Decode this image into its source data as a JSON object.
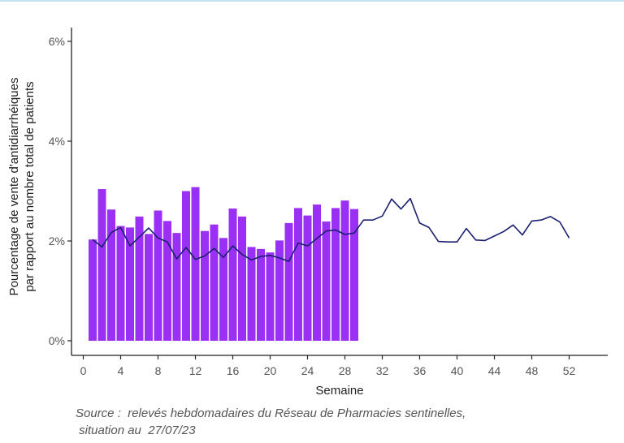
{
  "chart_data": {
    "type": "bar",
    "ylabel_lines": [
      "Pourcentage de vente d'antidiarrhéiques",
      "par rapport au nombre total de patients"
    ],
    "xlabel": "Semaine",
    "xlim": [
      0,
      54
    ],
    "ylim": [
      0,
      6
    ],
    "x_ticks": [
      0,
      4,
      8,
      12,
      16,
      20,
      24,
      28,
      32,
      36,
      40,
      44,
      48,
      52
    ],
    "y_ticks": [
      0,
      2,
      4,
      6
    ],
    "y_tick_labels": [
      "0%",
      "2%",
      "4%",
      "6%"
    ],
    "grid": false,
    "colors": {
      "bars": "#9b30f5",
      "line": "#1a1f6e",
      "axis": "#222222"
    },
    "series": [
      {
        "type": "bar",
        "x": [
          1,
          2,
          3,
          4,
          5,
          6,
          7,
          8,
          9,
          10,
          11,
          12,
          13,
          14,
          15,
          16,
          17,
          18,
          19,
          20,
          21,
          22,
          23,
          24,
          25,
          26,
          27,
          28,
          29
        ],
        "values": [
          2.03,
          3.04,
          2.63,
          2.3,
          2.27,
          2.49,
          2.14,
          2.61,
          2.4,
          2.16,
          3.0,
          3.08,
          2.2,
          2.33,
          2.06,
          2.65,
          2.49,
          1.88,
          1.84,
          1.77,
          2.01,
          2.36,
          2.66,
          2.51,
          2.73,
          2.39,
          2.66,
          2.81,
          2.64
        ]
      },
      {
        "type": "line",
        "x": [
          1,
          2,
          3,
          4,
          5,
          6,
          7,
          8,
          9,
          10,
          11,
          12,
          13,
          14,
          15,
          16,
          17,
          18,
          19,
          20,
          21,
          22,
          23,
          24,
          25,
          26,
          27,
          28,
          29,
          30,
          31,
          32,
          33,
          34,
          35,
          36,
          37,
          38,
          39,
          40,
          41,
          42,
          43,
          44,
          45,
          46,
          47,
          48,
          49,
          50,
          51,
          52
        ],
        "values": [
          2.03,
          1.88,
          2.17,
          2.27,
          1.9,
          2.08,
          2.26,
          2.06,
          1.98,
          1.64,
          1.87,
          1.63,
          1.7,
          1.85,
          1.67,
          1.9,
          1.73,
          1.62,
          1.69,
          1.71,
          1.66,
          1.59,
          1.96,
          1.9,
          2.05,
          2.2,
          2.22,
          2.13,
          2.16,
          2.42,
          2.42,
          2.5,
          2.84,
          2.64,
          2.85,
          2.36,
          2.27,
          1.99,
          1.98,
          1.98,
          2.25,
          2.02,
          2.01,
          2.1,
          2.19,
          2.32,
          2.12,
          2.4,
          2.42,
          2.49,
          2.38,
          2.06
        ]
      }
    ]
  },
  "source_lines": [
    "Source :  relevés hebdomadaires du Réseau de Pharmacies sentinelles,",
    " situation au  27/07/23"
  ]
}
